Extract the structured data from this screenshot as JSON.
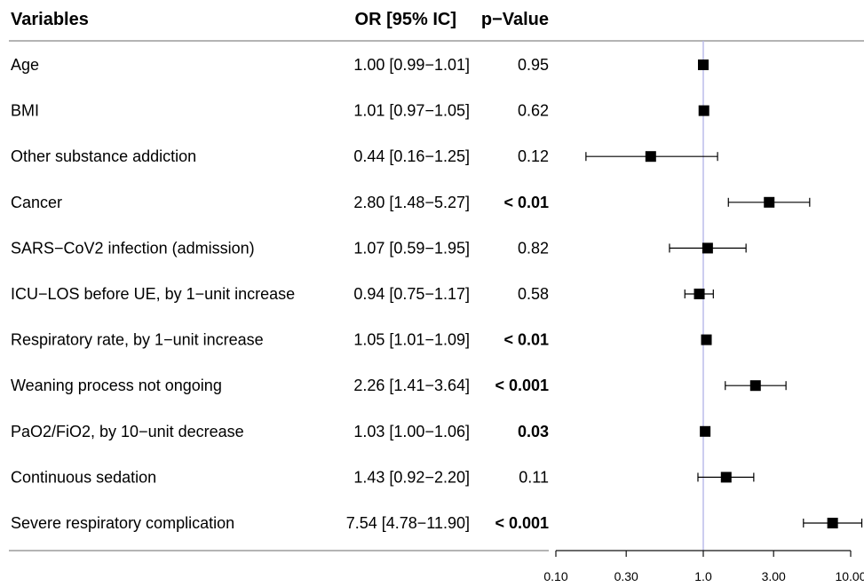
{
  "chart_data": {
    "type": "forest",
    "headers": {
      "variable": "Variables",
      "or": "OR [95% IC]",
      "pvalue": "p−Value"
    },
    "rows": [
      {
        "label": "Age",
        "or_text": "1.00 [0.99−1.01]",
        "p_text": "0.95",
        "p_bold": false,
        "or": 1.0,
        "lo": 0.99,
        "hi": 1.01
      },
      {
        "label": "BMI",
        "or_text": "1.01 [0.97−1.05]",
        "p_text": "0.62",
        "p_bold": false,
        "or": 1.01,
        "lo": 0.97,
        "hi": 1.05
      },
      {
        "label": "Other substance addiction",
        "or_text": "0.44 [0.16−1.25]",
        "p_text": "0.12",
        "p_bold": false,
        "or": 0.44,
        "lo": 0.16,
        "hi": 1.25
      },
      {
        "label": "Cancer",
        "or_text": "2.80 [1.48−5.27]",
        "p_text": "< 0.01",
        "p_bold": true,
        "or": 2.8,
        "lo": 1.48,
        "hi": 5.27
      },
      {
        "label": "SARS−CoV2 infection (admission)",
        "or_text": "1.07 [0.59−1.95]",
        "p_text": "0.82",
        "p_bold": false,
        "or": 1.07,
        "lo": 0.59,
        "hi": 1.95
      },
      {
        "label": "ICU−LOS before UE, by 1−unit increase",
        "or_text": "0.94 [0.75−1.17]",
        "p_text": "0.58",
        "p_bold": false,
        "or": 0.94,
        "lo": 0.75,
        "hi": 1.17
      },
      {
        "label": "Respiratory rate, by 1−unit increase",
        "or_text": "1.05 [1.01−1.09]",
        "p_text": "< 0.01",
        "p_bold": true,
        "or": 1.05,
        "lo": 1.01,
        "hi": 1.09
      },
      {
        "label": "Weaning process not ongoing",
        "or_text": "2.26 [1.41−3.64]",
        "p_text": "< 0.001",
        "p_bold": true,
        "or": 2.26,
        "lo": 1.41,
        "hi": 3.64
      },
      {
        "label": "PaO2/FiO2, by 10−unit decrease",
        "or_text": "1.03 [1.00−1.06]",
        "p_text": "0.03",
        "p_bold": true,
        "or": 1.03,
        "lo": 1.0,
        "hi": 1.06
      },
      {
        "label": "Continuous sedation",
        "or_text": "1.43 [0.92−2.20]",
        "p_text": "0.11",
        "p_bold": false,
        "or": 1.43,
        "lo": 0.92,
        "hi": 2.2
      },
      {
        "label": "Severe respiratory complication",
        "or_text": "7.54 [4.78−11.90]",
        "p_text": "< 0.001",
        "p_bold": true,
        "or": 7.54,
        "lo": 4.78,
        "hi": 11.9
      }
    ],
    "x_scale": "log",
    "xlim": [
      0.1,
      10
    ],
    "reference_value": 1,
    "x_ticks": [
      {
        "value": 0.1,
        "label": "0.10"
      },
      {
        "value": 0.3,
        "label": "0.30"
      },
      {
        "value": 1,
        "label": "1.0"
      },
      {
        "value": 3,
        "label": "3.00"
      },
      {
        "value": 10,
        "label": "10.00"
      }
    ],
    "colors": {
      "marker": "#000000",
      "reference_line": "#b6b8e8",
      "rule": "#888888"
    }
  }
}
